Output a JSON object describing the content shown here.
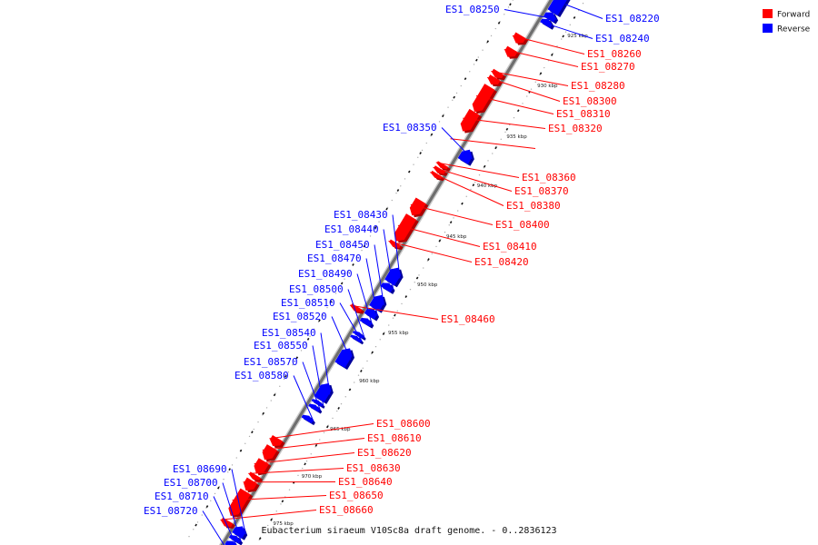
{
  "legend": [
    {
      "name": "Forward",
      "color": "#ff0000"
    },
    {
      "name": "Reverse",
      "color": "#0000ff"
    }
  ],
  "colors": {
    "forward": "#ff0000",
    "reverse": "#0000ff",
    "forward_dark": "#b00000",
    "reverse_dark": "#00009a",
    "axis": "#6e6e6e"
  },
  "caption": "Eubacterium siraeum V10Sc8a draft genome. - 0..2836123",
  "kbp_labels": [
    "925 kbp",
    "930 kbp",
    "935 kbp",
    "940 kbp",
    "945 kbp",
    "950 kbp",
    "955 kbp",
    "960 kbp",
    "965 kbp",
    "970 kbp",
    "975 kbp"
  ],
  "genes": [
    {
      "id": "ES1_08220",
      "strand": "reverse",
      "start": 0.0,
      "end": 0.04
    },
    {
      "id": "ES1_08250",
      "strand": "reverse",
      "start": 0.04,
      "end": 0.052
    },
    {
      "id": "ES1_08240",
      "strand": "reverse",
      "start": 0.052,
      "end": 0.062
    },
    {
      "id": "ES1_08260",
      "strand": "forward",
      "start": 0.094,
      "end": 0.108
    },
    {
      "id": "ES1_08270",
      "strand": "forward",
      "start": 0.118,
      "end": 0.132
    },
    {
      "id": "ES1_08280",
      "strand": "forward",
      "start": 0.158,
      "end": 0.168
    },
    {
      "id": "ES1_08300",
      "strand": "forward",
      "start": 0.168,
      "end": 0.18
    },
    {
      "id": "ES1_08310",
      "strand": "forward",
      "start": 0.184,
      "end": 0.228
    },
    {
      "id": "ES1_08320",
      "strand": "forward",
      "start": 0.228,
      "end": 0.262
    },
    {
      "id": "ES1_08350",
      "strand": "reverse",
      "start": 0.28,
      "end": 0.3
    },
    {
      "id": "ES1_08360",
      "strand": "forward",
      "start": 0.319,
      "end": 0.326
    },
    {
      "id": "ES1_08370",
      "strand": "forward",
      "start": 0.327,
      "end": 0.335
    },
    {
      "id": "ES1_08380",
      "strand": "forward",
      "start": 0.336,
      "end": 0.343
    },
    {
      "id": "ES1_08400",
      "strand": "forward",
      "start": 0.383,
      "end": 0.409
    },
    {
      "id": "ES1_08410",
      "strand": "forward",
      "start": 0.411,
      "end": 0.454
    },
    {
      "id": "ES1_08420",
      "strand": "forward",
      "start": 0.456,
      "end": 0.464
    },
    {
      "id": "ES1_08430",
      "strand": "reverse",
      "start": 0.486,
      "end": 0.512
    },
    {
      "id": "ES1_08440",
      "strand": "reverse",
      "start": 0.513,
      "end": 0.524
    },
    {
      "id": "ES1_08450",
      "strand": "reverse",
      "start": 0.534,
      "end": 0.557
    },
    {
      "id": "ES1_08470",
      "strand": "reverse",
      "start": 0.558,
      "end": 0.571
    },
    {
      "id": "ES1_08460",
      "strand": "forward",
      "start": 0.568,
      "end": 0.576
    },
    {
      "id": "ES1_08490",
      "strand": "reverse",
      "start": 0.575,
      "end": 0.584
    },
    {
      "id": "ES1_08500",
      "strand": "reverse",
      "start": 0.599,
      "end": 0.605
    },
    {
      "id": "ES1_08510",
      "strand": "reverse",
      "start": 0.606,
      "end": 0.612
    },
    {
      "id": "ES1_08520",
      "strand": "reverse",
      "start": 0.627,
      "end": 0.656
    },
    {
      "id": "ES1_08540",
      "strand": "reverse",
      "start": 0.688,
      "end": 0.716
    },
    {
      "id": "ES1_08550",
      "strand": "reverse",
      "start": 0.718,
      "end": 0.724
    },
    {
      "id": "ES1_08570",
      "strand": "reverse",
      "start": 0.726,
      "end": 0.733
    },
    {
      "id": "ES1_08580",
      "strand": "reverse",
      "start": 0.745,
      "end": 0.753
    },
    {
      "id": "ES1_08600",
      "strand": "forward",
      "start": 0.798,
      "end": 0.812
    },
    {
      "id": "ES1_08610",
      "strand": "forward",
      "start": 0.814,
      "end": 0.836
    },
    {
      "id": "ES1_08620",
      "strand": "forward",
      "start": 0.838,
      "end": 0.86
    },
    {
      "id": "ES1_08630",
      "strand": "forward",
      "start": 0.862,
      "end": 0.87
    },
    {
      "id": "ES1_08640",
      "strand": "forward",
      "start": 0.872,
      "end": 0.89
    },
    {
      "id": "ES1_08650",
      "strand": "forward",
      "start": 0.891,
      "end": 0.934
    },
    {
      "id": "ES1_08660",
      "strand": "forward",
      "start": 0.942,
      "end": 0.952
    },
    {
      "id": "ES1_08690",
      "strand": "reverse",
      "start": 0.938,
      "end": 0.954
    },
    {
      "id": "ES1_08700",
      "strand": "reverse",
      "start": 0.955,
      "end": 0.963
    },
    {
      "id": "ES1_08710",
      "strand": "reverse",
      "start": 0.964,
      "end": 0.975
    },
    {
      "id": "ES1_08720",
      "strand": "reverse",
      "start": 0.976,
      "end": 0.996
    }
  ]
}
